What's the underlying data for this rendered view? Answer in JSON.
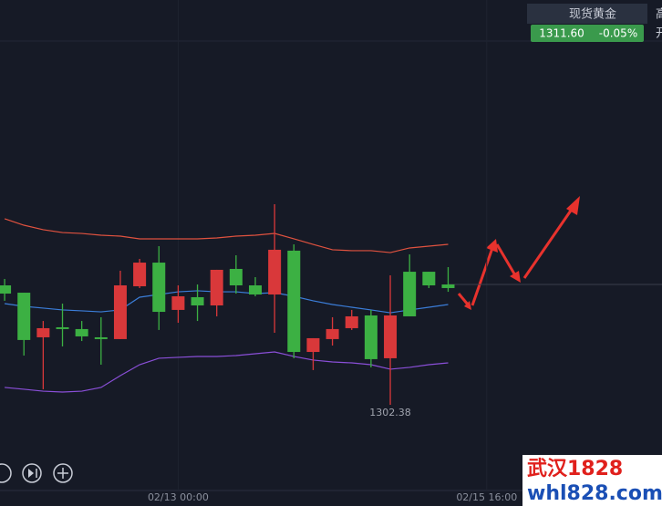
{
  "chart_data": {
    "type": "candlestick",
    "open": [
      1311.03,
      1307.42,
      1308.34,
      1308.27,
      1307.7,
      1307.49,
      1311.67,
      1313.44,
      1309.61,
      1310.82,
      1310.11,
      1312.88,
      1311.67,
      1310.96,
      1314.44,
      1306.49,
      1307.56,
      1308.27,
      1309.26,
      1305.93,
      1309.33,
      1309.26,
      1311.67,
      1311.46
    ],
    "high": [
      1312.17,
      1311.1,
      1308.9,
      1310.25,
      1308.9,
      1309.19,
      1312.81,
      1313.73,
      1314.72,
      1311.67,
      1311.74,
      1312.88,
      1314.01,
      1312.31,
      1317.98,
      1314.86,
      1307.56,
      1309.19,
      1309.76,
      1309.76,
      1312.45,
      1314.08,
      1312.73,
      1313.09
    ],
    "low": [
      1310.47,
      1306.21,
      1303.59,
      1306.92,
      1307.34,
      1305.5,
      1307.49,
      1311.46,
      1308.2,
      1308.76,
      1308.9,
      1309.26,
      1311.03,
      1310.82,
      1307.98,
      1306.0,
      1305.08,
      1306.99,
      1308.2,
      1305.29,
      1302.38,
      1309.26,
      1311.46,
      1311.17
    ],
    "close": [
      1311.67,
      1311.1,
      1307.63,
      1308.41,
      1308.27,
      1307.63,
      1307.49,
      1311.6,
      1313.44,
      1309.76,
      1310.75,
      1310.11,
      1312.95,
      1311.67,
      1310.96,
      1314.37,
      1306.49,
      1307.49,
      1308.34,
      1309.33,
      1306.0,
      1312.73,
      1312.73,
      1311.74
    ],
    "up_color": "#3cb043",
    "down_color": "#d9383a",
    "bands": [
      {
        "color": "#e0523f",
        "values": [
          1316.85,
          1316.35,
          1316.0,
          1315.78,
          1315.71,
          1315.57,
          1315.5,
          1315.29,
          1315.29,
          1315.29,
          1315.29,
          1315.36,
          1315.5,
          1315.57,
          1315.71,
          1315.29,
          1314.86,
          1314.44,
          1314.37,
          1314.37,
          1314.22,
          1314.58,
          1314.72,
          1314.86
        ]
      },
      {
        "color": "#3b7dd8",
        "values": [
          1310.25,
          1310.04,
          1309.9,
          1309.76,
          1309.69,
          1309.61,
          1309.76,
          1310.75,
          1310.96,
          1311.17,
          1311.25,
          1311.17,
          1311.17,
          1311.03,
          1311.1,
          1310.82,
          1310.47,
          1310.18,
          1309.97,
          1309.76,
          1309.54,
          1309.76,
          1309.97,
          1310.18
        ]
      },
      {
        "color": "#8a4fd8",
        "values": [
          1303.73,
          1303.59,
          1303.44,
          1303.37,
          1303.44,
          1303.73,
          1304.65,
          1305.5,
          1306.0,
          1306.07,
          1306.14,
          1306.14,
          1306.21,
          1306.35,
          1306.49,
          1306.14,
          1305.86,
          1305.71,
          1305.64,
          1305.5,
          1305.15,
          1305.29,
          1305.5,
          1305.64
        ]
      }
    ],
    "ylim": [
      1295.57,
      1333.87
    ],
    "xlim": [
      -0.24,
      34.09
    ],
    "xticks": [
      {
        "value": 9,
        "label": "02/13 00:00"
      },
      {
        "value": 25,
        "label": "02/15 16:00"
      }
    ],
    "low_annotation": "1302.38",
    "quote": {
      "name": "现货黄金",
      "price": "1311.60",
      "change": "-0.05%"
    },
    "edge_labels": [
      "高",
      "开"
    ],
    "watermark": {
      "top": "武汉1828",
      "bottom": "whl828.com"
    }
  }
}
